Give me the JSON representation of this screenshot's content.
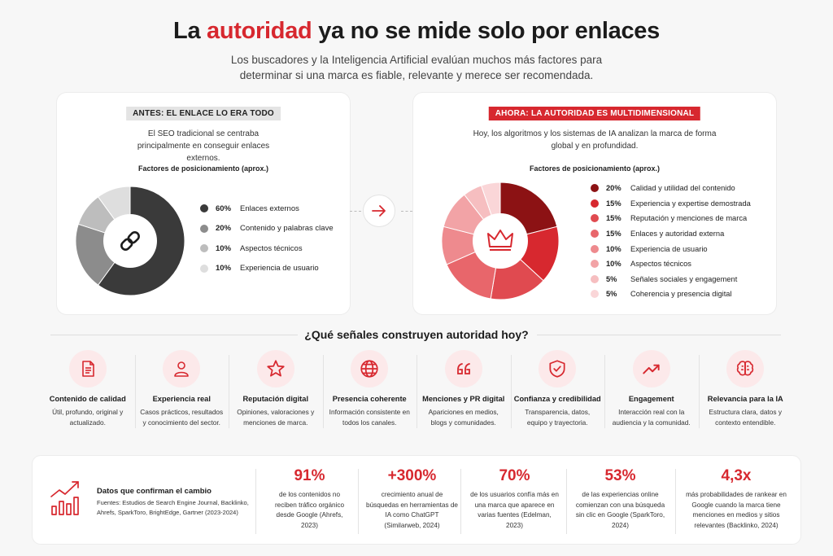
{
  "header": {
    "title_before": "La ",
    "title_accent": "autoridad",
    "title_after": " ya no se mide solo por enlaces",
    "subtitle": "Los buscadores y la Inteligencia Artificial evalúan muchos más factores para determinar si una marca es fiable, relevante y merece ser recomendada."
  },
  "before": {
    "badge": "ANTES: EL ENLACE LO ERA TODO",
    "description": "El SEO tradicional se centraba principalmente en conseguir enlaces externos.",
    "chart_title": "Factores de posicionamiento (aprox.)",
    "center_icon": "link-icon",
    "legend": [
      {
        "pct": "60%",
        "label": "Enlaces externos",
        "color": "#3a3a3a"
      },
      {
        "pct": "20%",
        "label": "Contenido y palabras clave",
        "color": "#8c8c8c"
      },
      {
        "pct": "10%",
        "label": "Aspectos técnicos",
        "color": "#bdbdbd"
      },
      {
        "pct": "10%",
        "label": "Experiencia de usuario",
        "color": "#dedede"
      }
    ]
  },
  "after": {
    "badge": "AHORA: LA AUTORIDAD ES MULTIDIMENSIONAL",
    "description": "Hoy, los algoritmos y los sistemas de IA analizan la marca de forma global y en profundidad.",
    "chart_title": "Factores de posicionamiento (aprox.)",
    "center_icon": "crown-icon",
    "legend": [
      {
        "pct": "20%",
        "label": "Calidad y utilidad del contenido",
        "color": "#8c1214"
      },
      {
        "pct": "15%",
        "label": "Experiencia y expertise demostrada",
        "color": "#d7282f"
      },
      {
        "pct": "15%",
        "label": "Reputación y menciones de marca",
        "color": "#e04a50"
      },
      {
        "pct": "15%",
        "label": "Enlaces y autoridad externa",
        "color": "#e8666b"
      },
      {
        "pct": "10%",
        "label": "Experiencia de usuario",
        "color": "#ee8a8e"
      },
      {
        "pct": "10%",
        "label": "Aspectos técnicos",
        "color": "#f2a3a6"
      },
      {
        "pct": "5%",
        "label": "Señales sociales y engagement",
        "color": "#f6bec0"
      },
      {
        "pct": "5%",
        "label": "Coherencia y presencia digital",
        "color": "#fad6d8"
      }
    ]
  },
  "chart_data": [
    {
      "type": "pie",
      "title": "Factores de posicionamiento (aprox.)",
      "categories": [
        "Enlaces externos",
        "Contenido y palabras clave",
        "Aspectos técnicos",
        "Experiencia de usuario"
      ],
      "values": [
        60,
        20,
        10,
        10
      ]
    },
    {
      "type": "pie",
      "title": "Factores de posicionamiento (aprox.)",
      "categories": [
        "Calidad y utilidad del contenido",
        "Experiencia y expertise demostrada",
        "Reputación y menciones de marca",
        "Enlaces y autoridad externa",
        "Experiencia de usuario",
        "Aspectos técnicos",
        "Señales sociales y engagement",
        "Coherencia y presencia digital"
      ],
      "values": [
        20,
        15,
        15,
        15,
        10,
        10,
        5,
        5
      ]
    }
  ],
  "signals_title": "¿Qué señales construyen autoridad hoy?",
  "signals": [
    {
      "icon": "document-icon",
      "title": "Contenido de calidad",
      "desc": "Útil, profundo, original y actualizado."
    },
    {
      "icon": "user-icon",
      "title": "Experiencia real",
      "desc": "Casos prácticos, resultados y conocimiento del sector."
    },
    {
      "icon": "star-icon",
      "title": "Reputación digital",
      "desc": "Opiniones, valoraciones y menciones de marca."
    },
    {
      "icon": "globe-icon",
      "title": "Presencia coherente",
      "desc": "Información consistente en todos los canales."
    },
    {
      "icon": "quote-icon",
      "title": "Menciones y PR digital",
      "desc": "Apariciones en medios, blogs y comunidades."
    },
    {
      "icon": "shield-check-icon",
      "title": "Confianza y credibilidad",
      "desc": "Transparencia, datos, equipo y trayectoria."
    },
    {
      "icon": "trend-up-icon",
      "title": "Engagement",
      "desc": "Interacción real con la audiencia y la comunidad."
    },
    {
      "icon": "brain-icon",
      "title": "Relevancia para la IA",
      "desc": "Estructura clara, datos y contexto entendible."
    }
  ],
  "stats": {
    "icon": "growth-chart-icon",
    "title": "Datos que confirman el cambio",
    "sources": "Fuentes: Estudios de Search Engine Journal, Backlinko, Ahrefs, SparkToro, BrightEdge, Gartner (2023-2024)",
    "items": [
      {
        "value": "91%",
        "text": "de los contenidos no reciben tráfico orgánico desde Google (Ahrefs, 2023)"
      },
      {
        "value": "+300%",
        "text": "crecimiento anual de búsquedas en herramientas de IA como ChatGPT (Similarweb, 2024)"
      },
      {
        "value": "70%",
        "text": "de los usuarios confía más en una marca que aparece en varias fuentes (Edelman, 2023)"
      },
      {
        "value": "53%",
        "text": "de las experiencias online comienzan con una búsqueda sin clic en Google (SparkToro, 2024)"
      },
      {
        "value": "4,3x",
        "text": "más probabilidades de rankear en Google cuando la marca tiene menciones en medios y sitios relevantes (Backlinko, 2024)"
      }
    ]
  }
}
